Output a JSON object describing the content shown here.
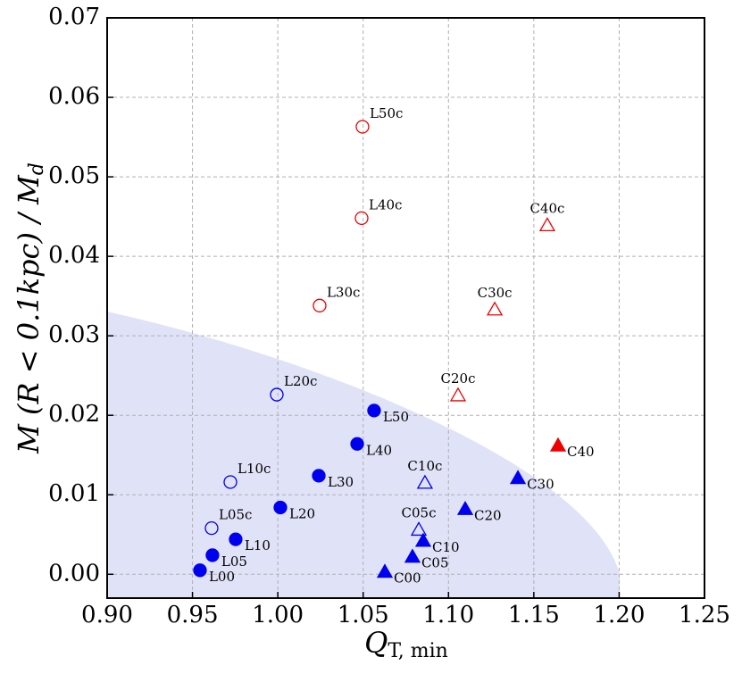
{
  "chart_data": {
    "type": "scatter",
    "xlabel": {
      "text": "Q",
      "subscript": "T, min"
    },
    "ylabel": {
      "text": "M (R < 0.1kpc) / M",
      "subscript": "d"
    },
    "xlim": [
      0.9,
      1.25
    ],
    "ylim": [
      -0.003,
      0.07
    ],
    "xticks": [
      {
        "value": 0.9,
        "label": "0.90"
      },
      {
        "value": 0.95,
        "label": "0.95"
      },
      {
        "value": 1.0,
        "label": "1.00"
      },
      {
        "value": 1.05,
        "label": "1.05"
      },
      {
        "value": 1.1,
        "label": "1.10"
      },
      {
        "value": 1.15,
        "label": "1.15"
      },
      {
        "value": 1.2,
        "label": "1.20"
      },
      {
        "value": 1.25,
        "label": "1.25"
      }
    ],
    "yticks": [
      {
        "value": 0.0,
        "label": "0.00"
      },
      {
        "value": 0.01,
        "label": "0.01"
      },
      {
        "value": 0.02,
        "label": "0.02"
      },
      {
        "value": 0.03,
        "label": "0.03"
      },
      {
        "value": 0.04,
        "label": "0.04"
      },
      {
        "value": 0.05,
        "label": "0.05"
      },
      {
        "value": 0.06,
        "label": "0.06"
      },
      {
        "value": 0.07,
        "label": "0.07"
      }
    ],
    "grid": true,
    "series": [
      {
        "marker": "circle",
        "filled": true,
        "color": "#0000ee",
        "label_position": "below-right",
        "labels": [
          "L00",
          "L05",
          "L10",
          "L20",
          "L30",
          "L40",
          "L50"
        ],
        "x": [
          0.9544,
          0.9617,
          0.9753,
          1.0015,
          1.024,
          1.0465,
          1.0564
        ],
        "y": [
          0.0005,
          0.0024,
          0.0044,
          0.0084,
          0.0124,
          0.0164,
          0.0206
        ]
      },
      {
        "marker": "circle",
        "filled": false,
        "color": "#0000ee",
        "label_position": "above-right",
        "labels": [
          "L05c",
          "L10c",
          "L20c"
        ],
        "x": [
          0.9612,
          0.9722,
          0.9994
        ],
        "y": [
          0.0058,
          0.0116,
          0.0226
        ]
      },
      {
        "marker": "circle",
        "filled": false,
        "color": "#ee0000",
        "label_position": "above-right",
        "labels": [
          "L30c",
          "L40c",
          "L50c"
        ],
        "x": [
          1.0245,
          1.0491,
          1.0496
        ],
        "y": [
          0.0338,
          0.0448,
          0.0563
        ]
      },
      {
        "marker": "triangle",
        "filled": true,
        "color": "#0000ee",
        "label_position": "below-right",
        "labels": [
          "C00",
          "C05",
          "C10",
          "C20",
          "C30"
        ],
        "x": [
          1.0627,
          1.0789,
          1.0852,
          1.1098,
          1.1407
        ],
        "y": [
          0.0003,
          0.0022,
          0.0042,
          0.0082,
          0.0121
        ]
      },
      {
        "marker": "triangle",
        "filled": true,
        "color": "#ee0000",
        "label_position": "below-right",
        "labels": [
          "C40"
        ],
        "x": [
          1.1642
        ],
        "y": [
          0.0162
        ]
      },
      {
        "marker": "triangle",
        "filled": false,
        "color": "#0000ee",
        "label_position": "above-center",
        "labels": [
          "C05c",
          "C10c"
        ],
        "x": [
          1.0826,
          1.0862
        ],
        "y": [
          0.0056,
          0.0115
        ]
      },
      {
        "marker": "triangle",
        "filled": false,
        "color": "#ee0000",
        "label_position": "above-center",
        "labels": [
          "C20c",
          "C30c",
          "C40c"
        ],
        "x": [
          1.1056,
          1.1271,
          1.1579
        ],
        "y": [
          0.0225,
          0.0333,
          0.0439
        ]
      }
    ]
  }
}
